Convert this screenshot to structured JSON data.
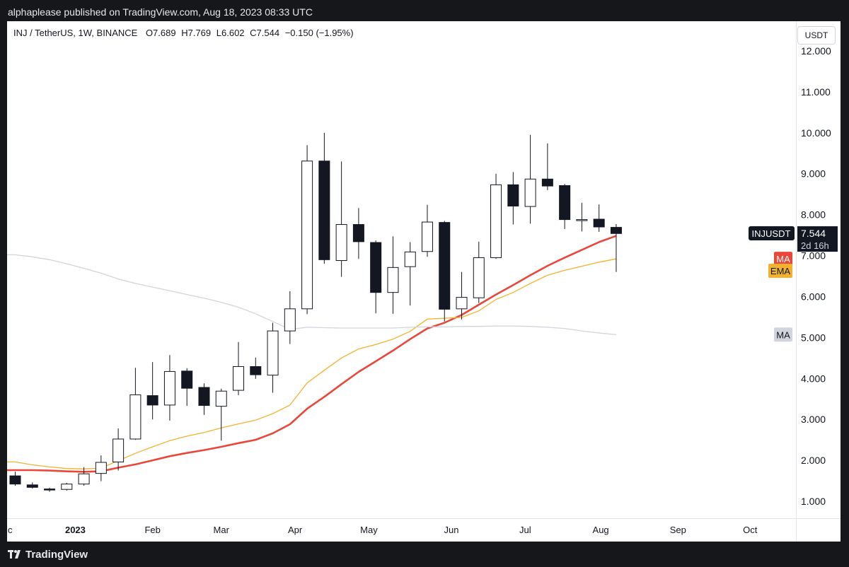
{
  "header": {
    "publisher_text": "alphaplease published on TradingView.com, Aug 18, 2023 08:33 UTC"
  },
  "legend": {
    "symbol": "INJ / TetherUS, 1W, BINANCE",
    "open": "O7.689",
    "high": "H7.769",
    "low": "L6.602",
    "close": "C7.544",
    "change": "−0.150 (−1.95%)"
  },
  "currency_button": "USDT",
  "footer": {
    "brand": "TradingView",
    "logo_icon": "tradingview-logo-icon"
  },
  "colors": {
    "up_body": "#ffffff",
    "down_body": "#131722",
    "wick": "#131722",
    "ma_fast": "#e8473a",
    "ema": "#f2b22d",
    "ma_slow": "#d1d4dc",
    "price_tag": "#131722"
  },
  "chart_data": {
    "type": "candlestick",
    "title": "INJ / TetherUS, 1W, BINANCE",
    "ylim": [
      0.6,
      12.0
    ],
    "y_ticks": [
      "12.000",
      "11.000",
      "10.000",
      "9.000",
      "8.000",
      "7.000",
      "6.000",
      "5.000",
      "4.000",
      "3.000",
      "2.000",
      "1.000"
    ],
    "y_tick_values": [
      12,
      11,
      10,
      9,
      8,
      7,
      6,
      5,
      4,
      3,
      2,
      1
    ],
    "x_ticks": [
      {
        "label": "c",
        "week": -0.3
      },
      {
        "label": "2023",
        "week": 3.5,
        "bold": true
      },
      {
        "label": "Feb",
        "week": 8
      },
      {
        "label": "Mar",
        "week": 12
      },
      {
        "label": "Apr",
        "week": 16.3
      },
      {
        "label": "May",
        "week": 20.6
      },
      {
        "label": "Jun",
        "week": 25.4
      },
      {
        "label": "Jul",
        "week": 29.7
      },
      {
        "label": "Aug",
        "week": 34.1
      },
      {
        "label": "Sep",
        "week": 38.6
      },
      {
        "label": "Oct",
        "week": 42.8
      }
    ],
    "candles": [
      {
        "o": 1.62,
        "h": 1.72,
        "l": 1.38,
        "c": 1.42
      },
      {
        "o": 1.4,
        "h": 1.46,
        "l": 1.31,
        "c": 1.34
      },
      {
        "o": 1.3,
        "h": 1.33,
        "l": 1.23,
        "c": 1.28
      },
      {
        "o": 1.29,
        "h": 1.45,
        "l": 1.26,
        "c": 1.42
      },
      {
        "o": 1.42,
        "h": 1.83,
        "l": 1.38,
        "c": 1.67
      },
      {
        "o": 1.68,
        "h": 2.12,
        "l": 1.49,
        "c": 1.95
      },
      {
        "o": 1.96,
        "h": 2.78,
        "l": 1.75,
        "c": 2.52
      },
      {
        "o": 2.52,
        "h": 4.26,
        "l": 2.5,
        "c": 3.6
      },
      {
        "o": 3.58,
        "h": 4.4,
        "l": 3.0,
        "c": 3.35
      },
      {
        "o": 3.35,
        "h": 4.57,
        "l": 2.97,
        "c": 4.17
      },
      {
        "o": 4.18,
        "h": 4.25,
        "l": 3.33,
        "c": 3.76
      },
      {
        "o": 3.78,
        "h": 3.88,
        "l": 3.11,
        "c": 3.34
      },
      {
        "o": 3.32,
        "h": 3.75,
        "l": 2.48,
        "c": 3.69
      },
      {
        "o": 3.71,
        "h": 4.89,
        "l": 3.59,
        "c": 4.29
      },
      {
        "o": 4.29,
        "h": 4.51,
        "l": 3.99,
        "c": 4.09
      },
      {
        "o": 4.08,
        "h": 5.36,
        "l": 3.65,
        "c": 5.16
      },
      {
        "o": 5.16,
        "h": 6.13,
        "l": 4.84,
        "c": 5.7
      },
      {
        "o": 5.7,
        "h": 9.7,
        "l": 5.57,
        "c": 9.31
      },
      {
        "o": 9.31,
        "h": 10.0,
        "l": 6.8,
        "c": 6.9
      },
      {
        "o": 6.88,
        "h": 9.3,
        "l": 6.48,
        "c": 7.76
      },
      {
        "o": 7.76,
        "h": 8.16,
        "l": 6.92,
        "c": 7.34
      },
      {
        "o": 7.32,
        "h": 7.37,
        "l": 5.59,
        "c": 6.1
      },
      {
        "o": 6.1,
        "h": 7.47,
        "l": 5.58,
        "c": 6.71
      },
      {
        "o": 6.73,
        "h": 7.33,
        "l": 5.78,
        "c": 7.09
      },
      {
        "o": 7.1,
        "h": 8.24,
        "l": 6.97,
        "c": 7.82
      },
      {
        "o": 7.81,
        "h": 7.85,
        "l": 5.39,
        "c": 5.69
      },
      {
        "o": 5.7,
        "h": 6.6,
        "l": 5.44,
        "c": 5.98
      },
      {
        "o": 5.97,
        "h": 7.34,
        "l": 5.84,
        "c": 6.95
      },
      {
        "o": 6.95,
        "h": 9.0,
        "l": 6.92,
        "c": 8.73
      },
      {
        "o": 8.73,
        "h": 9.04,
        "l": 7.76,
        "c": 8.21
      },
      {
        "o": 8.2,
        "h": 9.95,
        "l": 7.78,
        "c": 8.87
      },
      {
        "o": 8.87,
        "h": 9.74,
        "l": 8.6,
        "c": 8.7
      },
      {
        "o": 8.71,
        "h": 8.75,
        "l": 7.65,
        "c": 7.88
      },
      {
        "o": 7.87,
        "h": 8.29,
        "l": 7.59,
        "c": 7.88
      },
      {
        "o": 7.89,
        "h": 8.25,
        "l": 7.58,
        "c": 7.7
      },
      {
        "o": 7.69,
        "h": 7.77,
        "l": 6.6,
        "c": 7.54
      }
    ],
    "series": [
      {
        "name": "MA",
        "values": [
          1.76,
          1.76,
          1.75,
          1.73,
          1.72,
          1.73,
          1.82,
          1.9,
          2.0,
          2.1,
          2.18,
          2.25,
          2.33,
          2.42,
          2.5,
          2.66,
          2.88,
          3.26,
          3.55,
          3.86,
          4.16,
          4.42,
          4.68,
          4.96,
          5.22,
          5.36,
          5.55,
          5.8,
          6.05,
          6.28,
          6.52,
          6.75,
          6.95,
          7.14,
          7.33,
          7.48
        ]
      },
      {
        "name": "EMA",
        "values": [
          1.96,
          1.89,
          1.84,
          1.8,
          1.79,
          1.81,
          1.99,
          2.17,
          2.33,
          2.48,
          2.59,
          2.68,
          2.79,
          2.89,
          2.98,
          3.14,
          3.35,
          3.89,
          4.2,
          4.5,
          4.72,
          4.83,
          4.96,
          5.15,
          5.45,
          5.47,
          5.49,
          5.65,
          5.93,
          6.1,
          6.32,
          6.52,
          6.64,
          6.74,
          6.84,
          6.92
        ]
      },
      {
        "name": "MA",
        "values": [
          7.02,
          6.97,
          6.9,
          6.8,
          6.69,
          6.57,
          6.43,
          6.32,
          6.23,
          6.14,
          6.05,
          5.96,
          5.86,
          5.74,
          5.58,
          5.39,
          5.2,
          5.25,
          5.24,
          5.23,
          5.23,
          5.23,
          5.23,
          5.25,
          5.26,
          5.26,
          5.27,
          5.27,
          5.28,
          5.28,
          5.27,
          5.25,
          5.22,
          5.16,
          5.11,
          5.07
        ]
      }
    ],
    "price_label": {
      "symbol": "INJUSDT",
      "value": "7.544",
      "countdown": "2d 16h",
      "y": 7.544
    },
    "series_labels": [
      {
        "text": "MA",
        "y": 6.92,
        "color": "#e8473a"
      },
      {
        "text": "EMA",
        "y": 6.63,
        "color": "#f2b22d"
      },
      {
        "text": "MA",
        "y": 5.07,
        "color": "#d1d4dc"
      }
    ]
  }
}
